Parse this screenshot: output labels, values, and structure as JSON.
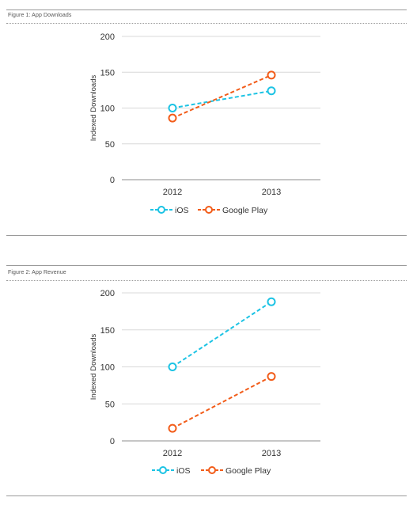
{
  "figures": [
    {
      "title": "Figure 1: App Downloads",
      "chart_data": {
        "type": "line",
        "title": "",
        "xlabel": "",
        "ylabel": "Indexed Downloads",
        "categories": [
          "2012",
          "2013"
        ],
        "ylim": [
          0,
          200
        ],
        "yticks": [
          0,
          50,
          100,
          150,
          200
        ],
        "grid": true,
        "legend_position": "bottom",
        "series": [
          {
            "name": "iOS",
            "values": [
              100,
              124
            ],
            "color": "#1cc3e4"
          },
          {
            "name": "Google Play",
            "values": [
              86,
              146
            ],
            "color": "#f25c19"
          }
        ]
      }
    },
    {
      "title": "Figure 2: App Revenue",
      "chart_data": {
        "type": "line",
        "title": "",
        "xlabel": "",
        "ylabel": "Indexed Downloads",
        "categories": [
          "2012",
          "2013"
        ],
        "ylim": [
          0,
          200
        ],
        "yticks": [
          0,
          50,
          100,
          150,
          200
        ],
        "grid": true,
        "legend_position": "bottom",
        "series": [
          {
            "name": "iOS",
            "values": [
              100,
              188
            ],
            "color": "#1cc3e4"
          },
          {
            "name": "Google Play",
            "values": [
              17,
              87
            ],
            "color": "#f25c19"
          }
        ]
      }
    }
  ]
}
